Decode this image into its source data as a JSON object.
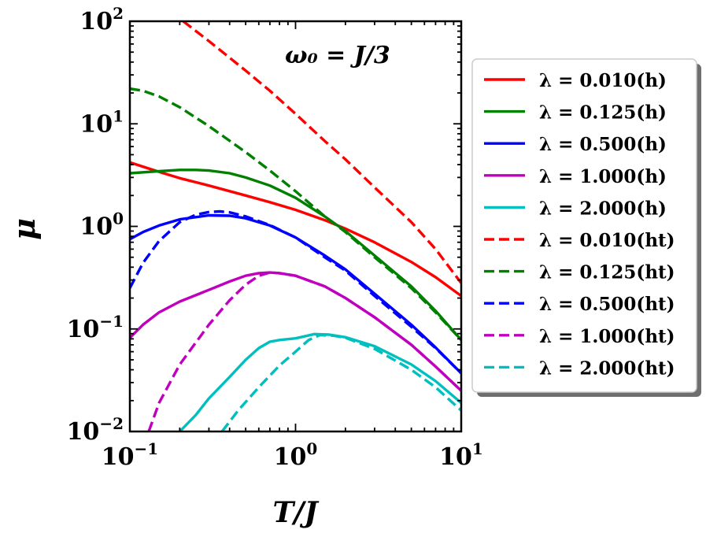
{
  "chart_data": {
    "type": "line",
    "title": "",
    "annotation": "ω₀ = J/3",
    "xlabel": "T/J",
    "ylabel": "μ",
    "xscale": "log",
    "yscale": "log",
    "xlim": [
      0.1,
      10
    ],
    "ylim": [
      0.01,
      100
    ],
    "grid": false,
    "legend_position": "outside-right",
    "x_ticks": [
      {
        "value": 0.1,
        "base": "10",
        "exp": "−1"
      },
      {
        "value": 1,
        "base": "10",
        "exp": "0"
      },
      {
        "value": 10,
        "base": "10",
        "exp": "1"
      }
    ],
    "y_ticks": [
      {
        "value": 0.01,
        "base": "10",
        "exp": "−2"
      },
      {
        "value": 0.1,
        "base": "10",
        "exp": "−1"
      },
      {
        "value": 1,
        "base": "10",
        "exp": "0"
      },
      {
        "value": 10,
        "base": "10",
        "exp": "1"
      },
      {
        "value": 100,
        "base": "10",
        "exp": "2"
      }
    ],
    "series": [
      {
        "name": "λ = 0.010(h)",
        "color": "#ff0000",
        "dash": "solid",
        "points": [
          [
            0.1,
            4.2
          ],
          [
            0.15,
            3.4
          ],
          [
            0.2,
            2.95
          ],
          [
            0.3,
            2.5
          ],
          [
            0.5,
            2.0
          ],
          [
            0.7,
            1.72
          ],
          [
            1,
            1.45
          ],
          [
            1.5,
            1.15
          ],
          [
            2,
            0.95
          ],
          [
            3,
            0.7
          ],
          [
            5,
            0.45
          ],
          [
            7,
            0.32
          ],
          [
            10,
            0.21
          ]
        ]
      },
      {
        "name": "λ = 0.125(h)",
        "color": "#008000",
        "dash": "solid",
        "points": [
          [
            0.1,
            3.3
          ],
          [
            0.15,
            3.45
          ],
          [
            0.2,
            3.55
          ],
          [
            0.25,
            3.55
          ],
          [
            0.3,
            3.5
          ],
          [
            0.4,
            3.3
          ],
          [
            0.5,
            3.0
          ],
          [
            0.7,
            2.5
          ],
          [
            1,
            1.9
          ],
          [
            1.5,
            1.25
          ],
          [
            2,
            0.9
          ],
          [
            3,
            0.52
          ],
          [
            5,
            0.26
          ],
          [
            7,
            0.15
          ],
          [
            10,
            0.078
          ]
        ]
      },
      {
        "name": "λ = 0.500(h)",
        "color": "#0000ff",
        "dash": "solid",
        "points": [
          [
            0.1,
            0.75
          ],
          [
            0.12,
            0.88
          ],
          [
            0.15,
            1.02
          ],
          [
            0.2,
            1.17
          ],
          [
            0.3,
            1.28
          ],
          [
            0.4,
            1.27
          ],
          [
            0.5,
            1.2
          ],
          [
            0.7,
            1.02
          ],
          [
            1,
            0.78
          ],
          [
            1.5,
            0.52
          ],
          [
            2,
            0.38
          ],
          [
            3,
            0.22
          ],
          [
            5,
            0.11
          ],
          [
            7,
            0.066
          ],
          [
            10,
            0.037
          ]
        ]
      },
      {
        "name": "λ = 1.000(h)",
        "color": "#bf00bf",
        "dash": "solid",
        "points": [
          [
            0.1,
            0.082
          ],
          [
            0.12,
            0.11
          ],
          [
            0.15,
            0.145
          ],
          [
            0.2,
            0.185
          ],
          [
            0.3,
            0.24
          ],
          [
            0.4,
            0.29
          ],
          [
            0.5,
            0.33
          ],
          [
            0.6,
            0.35
          ],
          [
            0.7,
            0.355
          ],
          [
            0.8,
            0.35
          ],
          [
            1,
            0.33
          ],
          [
            1.5,
            0.26
          ],
          [
            2,
            0.2
          ],
          [
            3,
            0.13
          ],
          [
            5,
            0.07
          ],
          [
            7,
            0.043
          ],
          [
            10,
            0.025
          ]
        ]
      },
      {
        "name": "λ = 2.000(h)",
        "color": "#00bfbf",
        "dash": "solid",
        "points": [
          [
            0.2,
            0.01
          ],
          [
            0.25,
            0.0145
          ],
          [
            0.3,
            0.021
          ],
          [
            0.4,
            0.034
          ],
          [
            0.5,
            0.05
          ],
          [
            0.6,
            0.065
          ],
          [
            0.7,
            0.075
          ],
          [
            0.8,
            0.078
          ],
          [
            1,
            0.081
          ],
          [
            1.3,
            0.089
          ],
          [
            1.6,
            0.088
          ],
          [
            2,
            0.083
          ],
          [
            3,
            0.068
          ],
          [
            5,
            0.045
          ],
          [
            7,
            0.031
          ],
          [
            10,
            0.019
          ]
        ]
      },
      {
        "name": "λ = 0.010(ht)",
        "color": "#ff0000",
        "dash": "dashed",
        "points": [
          [
            0.21,
            100
          ],
          [
            0.3,
            64
          ],
          [
            0.5,
            33
          ],
          [
            0.7,
            21
          ],
          [
            1,
            12.5
          ],
          [
            1.5,
            6.8
          ],
          [
            2,
            4.5
          ],
          [
            3,
            2.4
          ],
          [
            5,
            1.1
          ],
          [
            7,
            0.6
          ],
          [
            10,
            0.28
          ]
        ]
      },
      {
        "name": "λ = 0.125(ht)",
        "color": "#008000",
        "dash": "dashed",
        "points": [
          [
            0.1,
            22
          ],
          [
            0.12,
            21
          ],
          [
            0.15,
            18.5
          ],
          [
            0.2,
            14.5
          ],
          [
            0.3,
            9.5
          ],
          [
            0.5,
            5.3
          ],
          [
            0.7,
            3.5
          ],
          [
            1,
            2.2
          ],
          [
            1.5,
            1.25
          ],
          [
            2,
            0.88
          ],
          [
            3,
            0.5
          ],
          [
            5,
            0.25
          ],
          [
            7,
            0.145
          ],
          [
            10,
            0.078
          ]
        ]
      },
      {
        "name": "λ = 0.500(ht)",
        "color": "#0000ff",
        "dash": "dashed",
        "points": [
          [
            0.1,
            0.25
          ],
          [
            0.12,
            0.44
          ],
          [
            0.15,
            0.72
          ],
          [
            0.2,
            1.1
          ],
          [
            0.25,
            1.3
          ],
          [
            0.3,
            1.38
          ],
          [
            0.35,
            1.4
          ],
          [
            0.4,
            1.37
          ],
          [
            0.5,
            1.25
          ],
          [
            0.7,
            1.03
          ],
          [
            1,
            0.78
          ],
          [
            1.5,
            0.5
          ],
          [
            2,
            0.37
          ],
          [
            3,
            0.21
          ],
          [
            5,
            0.105
          ],
          [
            7,
            0.065
          ],
          [
            10,
            0.037
          ]
        ]
      },
      {
        "name": "λ = 1.000(ht)",
        "color": "#bf00bf",
        "dash": "dashed",
        "points": [
          [
            0.13,
            0.01
          ],
          [
            0.15,
            0.019
          ],
          [
            0.2,
            0.045
          ],
          [
            0.3,
            0.11
          ],
          [
            0.4,
            0.19
          ],
          [
            0.5,
            0.27
          ],
          [
            0.6,
            0.33
          ],
          [
            0.7,
            0.355
          ],
          [
            0.8,
            0.35
          ],
          [
            1,
            0.33
          ],
          [
            1.5,
            0.26
          ],
          [
            2,
            0.2
          ],
          [
            3,
            0.13
          ],
          [
            5,
            0.07
          ],
          [
            7,
            0.043
          ],
          [
            10,
            0.025
          ]
        ]
      },
      {
        "name": "λ = 2.000(ht)",
        "color": "#00bfbf",
        "dash": "dashed",
        "points": [
          [
            0.36,
            0.01
          ],
          [
            0.45,
            0.016
          ],
          [
            0.6,
            0.027
          ],
          [
            0.8,
            0.044
          ],
          [
            1,
            0.06
          ],
          [
            1.2,
            0.078
          ],
          [
            1.4,
            0.087
          ],
          [
            1.7,
            0.086
          ],
          [
            2,
            0.082
          ],
          [
            3,
            0.064
          ],
          [
            5,
            0.04
          ],
          [
            7,
            0.027
          ],
          [
            10,
            0.016
          ]
        ]
      }
    ]
  }
}
